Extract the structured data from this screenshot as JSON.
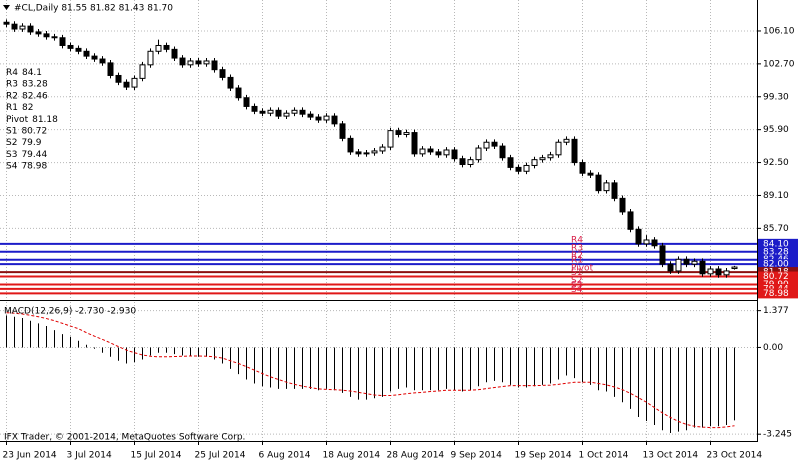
{
  "chart_data": [
    {
      "type": "candlestick",
      "title": "#CL,Daily  81.55 81.82 81.43 81.70",
      "categories": [
        "23 Jun 2014",
        null,
        null,
        null,
        null,
        null,
        null,
        null,
        "3 Jul 2014",
        null,
        null,
        null,
        null,
        null,
        null,
        null,
        "15 Jul 2014",
        null,
        null,
        null,
        null,
        null,
        null,
        null,
        "25 Jul 2014",
        null,
        null,
        null,
        null,
        null,
        null,
        null,
        "6 Aug 2014",
        null,
        null,
        null,
        null,
        null,
        null,
        null,
        "18 Aug 2014",
        null,
        null,
        null,
        null,
        null,
        null,
        null,
        "28 Aug 2014",
        null,
        null,
        null,
        null,
        null,
        null,
        null,
        "9 Sep 2014",
        null,
        null,
        null,
        null,
        null,
        null,
        null,
        "19 Sep 2014",
        null,
        null,
        null,
        null,
        null,
        null,
        null,
        "1 Oct 2014",
        null,
        null,
        null,
        null,
        null,
        null,
        null,
        "13 Oct 2014",
        null,
        null,
        null,
        null,
        null,
        null,
        null,
        "23 Oct 2014",
        null,
        null,
        null
      ],
      "open": [
        107.0,
        106.8,
        106.3,
        106.6,
        106.0,
        105.8,
        105.5,
        105.4,
        104.6,
        104.3,
        104.0,
        103.5,
        103.2,
        102.8,
        101.5,
        100.8,
        100.3,
        101.2,
        102.6,
        104.0,
        104.6,
        104.2,
        103.3,
        102.6,
        103.0,
        102.7,
        103.0,
        102.1,
        101.3,
        100.2,
        99.2,
        98.3,
        97.8,
        97.6,
        97.9,
        97.3,
        97.6,
        97.9,
        97.5,
        97.2,
        96.9,
        97.3,
        96.5,
        95.0,
        93.6,
        93.4,
        93.5,
        93.7,
        94.1,
        95.8,
        95.4,
        95.6,
        93.4,
        93.9,
        93.6,
        93.3,
        93.8,
        92.9,
        92.3,
        92.8,
        94.0,
        94.6,
        94.2,
        93.0,
        92.0,
        91.6,
        92.2,
        92.8,
        93.0,
        93.3,
        94.6,
        94.9,
        92.5,
        91.4,
        91.2,
        89.6,
        90.4,
        88.8,
        87.4,
        85.6,
        84.1,
        84.5,
        83.9,
        82.0,
        81.3,
        82.5,
        82.0,
        82.3,
        81.0,
        81.5,
        80.9,
        81.55
      ],
      "high": [
        107.3,
        107.1,
        106.9,
        106.9,
        106.3,
        106.1,
        105.8,
        105.7,
        104.9,
        104.6,
        104.3,
        103.8,
        103.5,
        103.1,
        101.8,
        101.1,
        101.5,
        102.9,
        104.3,
        105.2,
        104.9,
        104.5,
        103.6,
        103.3,
        103.3,
        103.3,
        103.3,
        102.4,
        101.6,
        100.5,
        99.5,
        98.6,
        98.1,
        98.2,
        98.2,
        97.9,
        98.2,
        98.2,
        97.8,
        97.5,
        97.6,
        97.6,
        96.8,
        95.3,
        93.9,
        93.8,
        94.0,
        94.4,
        96.1,
        96.1,
        95.9,
        95.9,
        94.2,
        94.2,
        93.9,
        94.1,
        94.1,
        93.2,
        93.1,
        94.3,
        94.9,
        94.9,
        94.5,
        93.3,
        92.3,
        92.5,
        93.1,
        93.3,
        93.6,
        94.9,
        95.2,
        95.2,
        92.8,
        91.7,
        91.5,
        90.7,
        90.7,
        89.1,
        87.7,
        85.9,
        85.0,
        84.8,
        84.2,
        82.3,
        82.8,
        82.8,
        82.6,
        82.6,
        81.8,
        81.8,
        81.6,
        81.82
      ],
      "low": [
        106.5,
        106.0,
        106.0,
        105.7,
        105.5,
        105.2,
        105.1,
        104.3,
        104.0,
        103.7,
        103.2,
        102.9,
        102.5,
        101.2,
        100.5,
        100.0,
        100.0,
        100.9,
        102.3,
        103.7,
        103.9,
        103.0,
        102.3,
        102.3,
        102.4,
        102.4,
        101.8,
        101.0,
        99.9,
        98.9,
        98.0,
        97.5,
        97.3,
        97.3,
        97.0,
        97.0,
        97.3,
        97.2,
        96.9,
        96.6,
        96.6,
        96.2,
        94.7,
        93.3,
        93.1,
        93.1,
        93.2,
        93.4,
        93.8,
        95.1,
        95.1,
        93.1,
        93.1,
        93.3,
        93.0,
        93.0,
        92.6,
        92.0,
        92.0,
        92.5,
        93.7,
        93.9,
        92.7,
        91.7,
        91.3,
        91.3,
        91.9,
        92.5,
        92.7,
        93.0,
        94.3,
        92.2,
        91.1,
        90.9,
        89.3,
        89.3,
        88.5,
        87.1,
        85.3,
        83.8,
        83.8,
        83.6,
        81.7,
        81.0,
        81.0,
        81.7,
        81.7,
        80.7,
        80.7,
        80.6,
        80.6,
        81.43
      ],
      "close": [
        106.8,
        106.3,
        106.6,
        106.0,
        105.8,
        105.5,
        105.4,
        104.6,
        104.3,
        104.0,
        103.5,
        103.2,
        102.8,
        101.5,
        100.8,
        100.3,
        101.2,
        102.6,
        104.0,
        104.6,
        104.2,
        103.3,
        102.6,
        103.0,
        102.7,
        103.0,
        102.1,
        101.3,
        100.2,
        99.2,
        98.3,
        97.8,
        97.6,
        97.9,
        97.3,
        97.6,
        97.9,
        97.5,
        97.2,
        96.9,
        97.3,
        96.5,
        95.0,
        93.6,
        93.4,
        93.5,
        93.7,
        94.1,
        95.8,
        95.4,
        95.6,
        93.4,
        93.9,
        93.6,
        93.3,
        93.8,
        92.9,
        92.3,
        92.8,
        94.0,
        94.6,
        94.2,
        93.0,
        92.0,
        91.6,
        92.2,
        92.8,
        93.0,
        93.3,
        94.6,
        94.9,
        92.5,
        91.4,
        91.2,
        89.6,
        90.4,
        88.8,
        87.4,
        85.6,
        84.1,
        84.5,
        83.9,
        82.0,
        81.3,
        82.5,
        82.0,
        82.3,
        81.0,
        81.5,
        80.9,
        81.3,
        81.7
      ],
      "up_color": "#ffffff",
      "down_color": "#000000",
      "outline_color": "#000000",
      "ylim": [
        78.4,
        109.3
      ],
      "yticks": [
        {
          "value": 106.1,
          "label": "106.10"
        },
        {
          "value": 102.7,
          "label": "102.70"
        },
        {
          "value": 99.3,
          "label": "99.30"
        },
        {
          "value": 95.9,
          "label": "95.90"
        },
        {
          "value": 92.5,
          "label": "92.50"
        },
        {
          "value": 89.1,
          "label": "89.10"
        },
        {
          "value": 85.7,
          "label": "85.70"
        }
      ],
      "grid": true,
      "pivots": {
        "names": [
          "R4",
          "R3",
          "R2",
          "R1",
          "Pivot",
          "S1",
          "S2",
          "S3",
          "S4"
        ],
        "values": [
          84.1,
          83.28,
          82.46,
          82,
          81.18,
          80.72,
          79.9,
          79.44,
          78.98
        ],
        "value_labels": [
          "84.10",
          "83.28",
          "82.46",
          "82.00",
          "81.18",
          "80.72",
          "79.90",
          "79.44",
          "78.98"
        ],
        "colors": [
          "#1c1cc8",
          "#1c1cc8",
          "#1c1cc8",
          "#1c1cc8",
          "#8b1010",
          "#e01818",
          "#e01818",
          "#e01818",
          "#e01818"
        ],
        "label_color": "#d8204a"
      }
    },
    {
      "type": "macd",
      "title": "MACD(12,26,9) -2.730 -2.930",
      "histogram": {
        "color": "#000000",
        "values": [
          1.2,
          1.15,
          1.1,
          1.0,
          0.9,
          0.8,
          0.65,
          0.5,
          0.4,
          0.25,
          0.1,
          -0.05,
          -0.2,
          -0.35,
          -0.5,
          -0.6,
          -0.55,
          -0.45,
          -0.3,
          -0.2,
          -0.2,
          -0.25,
          -0.3,
          -0.3,
          -0.35,
          -0.35,
          -0.45,
          -0.6,
          -0.8,
          -1.0,
          -1.2,
          -1.35,
          -1.45,
          -1.5,
          -1.55,
          -1.55,
          -1.55,
          -1.55,
          -1.55,
          -1.6,
          -1.55,
          -1.6,
          -1.7,
          -1.85,
          -1.95,
          -1.95,
          -1.9,
          -1.85,
          -1.65,
          -1.55,
          -1.5,
          -1.6,
          -1.6,
          -1.6,
          -1.6,
          -1.55,
          -1.6,
          -1.65,
          -1.6,
          -1.45,
          -1.3,
          -1.25,
          -1.3,
          -1.4,
          -1.5,
          -1.5,
          -1.45,
          -1.4,
          -1.35,
          -1.2,
          -1.05,
          -1.15,
          -1.3,
          -1.4,
          -1.6,
          -1.65,
          -1.85,
          -2.05,
          -2.3,
          -2.6,
          -2.75,
          -2.9,
          -3.1,
          -3.2,
          -3.15,
          -3.1,
          -3.0,
          -3.0,
          -2.95,
          -2.95,
          -2.9,
          -2.73
        ]
      },
      "signal": {
        "color": "#e00000",
        "values": [
          1.3,
          1.28,
          1.25,
          1.2,
          1.15,
          1.08,
          1.0,
          0.9,
          0.8,
          0.7,
          0.55,
          0.42,
          0.3,
          0.17,
          0.03,
          -0.1,
          -0.2,
          -0.28,
          -0.33,
          -0.35,
          -0.35,
          -0.34,
          -0.33,
          -0.32,
          -0.32,
          -0.33,
          -0.35,
          -0.4,
          -0.5,
          -0.6,
          -0.72,
          -0.85,
          -0.98,
          -1.1,
          -1.2,
          -1.3,
          -1.38,
          -1.45,
          -1.5,
          -1.55,
          -1.57,
          -1.58,
          -1.6,
          -1.63,
          -1.68,
          -1.73,
          -1.78,
          -1.8,
          -1.8,
          -1.77,
          -1.73,
          -1.7,
          -1.68,
          -1.65,
          -1.63,
          -1.6,
          -1.6,
          -1.6,
          -1.6,
          -1.58,
          -1.54,
          -1.5,
          -1.46,
          -1.43,
          -1.43,
          -1.43,
          -1.43,
          -1.42,
          -1.41,
          -1.38,
          -1.34,
          -1.3,
          -1.3,
          -1.3,
          -1.35,
          -1.4,
          -1.48,
          -1.58,
          -1.72,
          -1.88,
          -2.05,
          -2.25,
          -2.45,
          -2.62,
          -2.77,
          -2.88,
          -2.95,
          -2.98,
          -3.0,
          -3.0,
          -2.97,
          -2.93
        ]
      },
      "ylim": [
        -3.5,
        1.7
      ],
      "yticks": [
        1.377,
        {
          "value": 0,
          "label": "0.00"
        },
        -3.245
      ]
    }
  ],
  "footer": "IFX Trader, © 2001-2014, MetaQuotes Software Corp."
}
